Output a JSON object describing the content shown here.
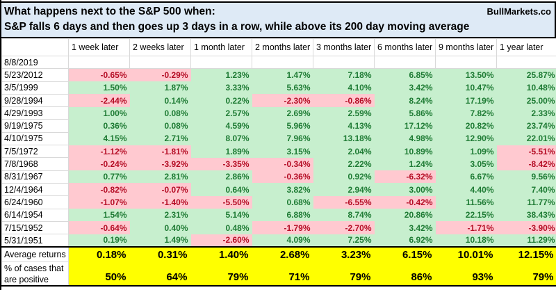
{
  "header": {
    "title_line1": "What happens next to the S&P 500 when:",
    "title_line2": "S&P falls 6 days and then goes up 3 days in a row, while above its 200 day moving average",
    "brand": "BullMarkets.co"
  },
  "table": {
    "columns": [
      "1 week later",
      "2 weeks later",
      "1 month later",
      "2 months later",
      "3 months later",
      "6 months later",
      "9 months later",
      "1 year later"
    ],
    "rows": [
      {
        "date": "8/8/2019",
        "values": [
          "",
          "",
          "",
          "",
          "",
          "",
          "",
          ""
        ]
      },
      {
        "date": "5/23/2012",
        "values": [
          "-0.65%",
          "-0.29%",
          "1.23%",
          "1.47%",
          "7.18%",
          "6.85%",
          "13.50%",
          "25.87%"
        ]
      },
      {
        "date": "3/5/1999",
        "values": [
          "1.50%",
          "1.87%",
          "3.33%",
          "5.63%",
          "4.10%",
          "3.42%",
          "10.47%",
          "10.48%"
        ]
      },
      {
        "date": "9/28/1994",
        "values": [
          "-2.44%",
          "0.14%",
          "0.22%",
          "-2.30%",
          "-0.86%",
          "8.24%",
          "17.19%",
          "25.00%"
        ]
      },
      {
        "date": "4/29/1993",
        "values": [
          "1.00%",
          "0.08%",
          "2.57%",
          "2.69%",
          "2.59%",
          "5.86%",
          "7.82%",
          "2.33%"
        ]
      },
      {
        "date": "9/19/1975",
        "values": [
          "0.36%",
          "0.08%",
          "4.59%",
          "5.96%",
          "4.13%",
          "17.12%",
          "20.82%",
          "23.74%"
        ]
      },
      {
        "date": "4/10/1975",
        "values": [
          "4.15%",
          "2.71%",
          "8.07%",
          "7.96%",
          "13.18%",
          "4.98%",
          "12.90%",
          "22.01%"
        ]
      },
      {
        "date": "7/5/1972",
        "values": [
          "-1.12%",
          "-1.81%",
          "1.89%",
          "3.15%",
          "2.04%",
          "10.89%",
          "1.09%",
          "-5.51%"
        ]
      },
      {
        "date": "7/8/1968",
        "values": [
          "-0.24%",
          "-3.92%",
          "-3.35%",
          "-0.34%",
          "2.22%",
          "1.24%",
          "3.05%",
          "-8.42%"
        ]
      },
      {
        "date": "8/31/1967",
        "values": [
          "0.77%",
          "2.81%",
          "2.86%",
          "-0.36%",
          "0.92%",
          "-6.32%",
          "6.67%",
          "9.56%"
        ]
      },
      {
        "date": "12/4/1964",
        "values": [
          "-0.82%",
          "-0.07%",
          "0.64%",
          "3.82%",
          "2.94%",
          "3.00%",
          "4.40%",
          "7.40%"
        ]
      },
      {
        "date": "6/24/1960",
        "values": [
          "-1.07%",
          "-1.40%",
          "-5.50%",
          "0.68%",
          "-6.55%",
          "-0.42%",
          "11.56%",
          "11.77%"
        ]
      },
      {
        "date": "6/14/1954",
        "values": [
          "1.54%",
          "2.31%",
          "5.14%",
          "6.88%",
          "8.74%",
          "20.86%",
          "22.15%",
          "38.43%"
        ]
      },
      {
        "date": "7/15/1952",
        "values": [
          "-0.64%",
          "0.40%",
          "0.48%",
          "-1.79%",
          "-2.70%",
          "3.42%",
          "-1.71%",
          "-3.90%"
        ]
      },
      {
        "date": "5/31/1951",
        "values": [
          "0.19%",
          "1.49%",
          "-2.60%",
          "4.09%",
          "7.25%",
          "6.92%",
          "10.18%",
          "11.29%"
        ]
      }
    ]
  },
  "summary": {
    "average": {
      "label": "Average returns",
      "values": [
        "0.18%",
        "0.31%",
        "1.40%",
        "2.68%",
        "3.23%",
        "6.15%",
        "10.01%",
        "12.15%"
      ]
    },
    "percent_positive": {
      "label": "% of cases that are positive",
      "values": [
        "50%",
        "64%",
        "79%",
        "71%",
        "79%",
        "86%",
        "93%",
        "79%"
      ]
    }
  },
  "colors": {
    "title_bg": "#deeaf6",
    "positive_bg": "#c7efce",
    "positive_text": "#1e7b34",
    "negative_bg": "#ffc9d0",
    "negative_text": "#b50d25",
    "highlight_bg": "#ffff00",
    "gridline": "#d9d9d9"
  }
}
